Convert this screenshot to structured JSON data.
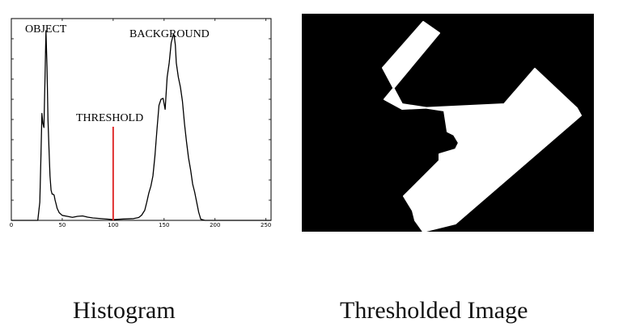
{
  "histogram": {
    "chart_data": {
      "type": "line",
      "xlim": [
        0,
        255
      ],
      "x_ticks": [
        0,
        50,
        100,
        150,
        200,
        250
      ],
      "ylim": [
        0,
        10000
      ],
      "y_tick_count": 11,
      "series": [
        {
          "color": "#000000",
          "x": [
            0,
            26,
            28,
            29,
            30,
            31,
            32,
            33,
            34,
            35,
            36,
            37,
            38,
            39,
            40,
            41,
            42,
            43,
            44,
            45,
            47,
            50,
            55,
            60,
            65,
            70,
            75,
            80,
            90,
            100,
            110,
            120,
            125,
            128,
            131,
            133,
            135,
            137,
            139,
            141,
            143,
            145,
            147,
            149,
            151,
            153,
            155,
            157,
            159,
            160,
            161,
            162,
            164,
            166,
            168,
            170,
            172,
            174,
            176,
            178,
            180,
            182,
            184,
            186,
            190,
            200,
            255
          ],
          "y": [
            0,
            0,
            900,
            3000,
            5300,
            4800,
            4600,
            6800,
            9400,
            7600,
            5000,
            3500,
            2200,
            1500,
            1300,
            1300,
            1250,
            1000,
            800,
            600,
            380,
            250,
            200,
            150,
            200,
            220,
            160,
            120,
            80,
            40,
            70,
            90,
            140,
            260,
            500,
            900,
            1350,
            1700,
            2200,
            3200,
            4500,
            5700,
            6000,
            6050,
            5500,
            7100,
            7800,
            8800,
            9200,
            9100,
            8700,
            7800,
            7100,
            6600,
            5900,
            4800,
            3900,
            3100,
            2500,
            1800,
            1400,
            900,
            400,
            60,
            0,
            0,
            0
          ]
        }
      ],
      "threshold": {
        "x": 100,
        "color": "#e03030"
      },
      "annotations": [
        {
          "text": "OBJECT"
        },
        {
          "text": "BACKGROUND"
        },
        {
          "text": "THRESHOLD"
        }
      ]
    }
  },
  "thresholded": {
    "background_color": "#000000",
    "foreground_color": "#ffffff"
  },
  "captions": {
    "left": "Histogram",
    "right": "Thresholded Image"
  }
}
